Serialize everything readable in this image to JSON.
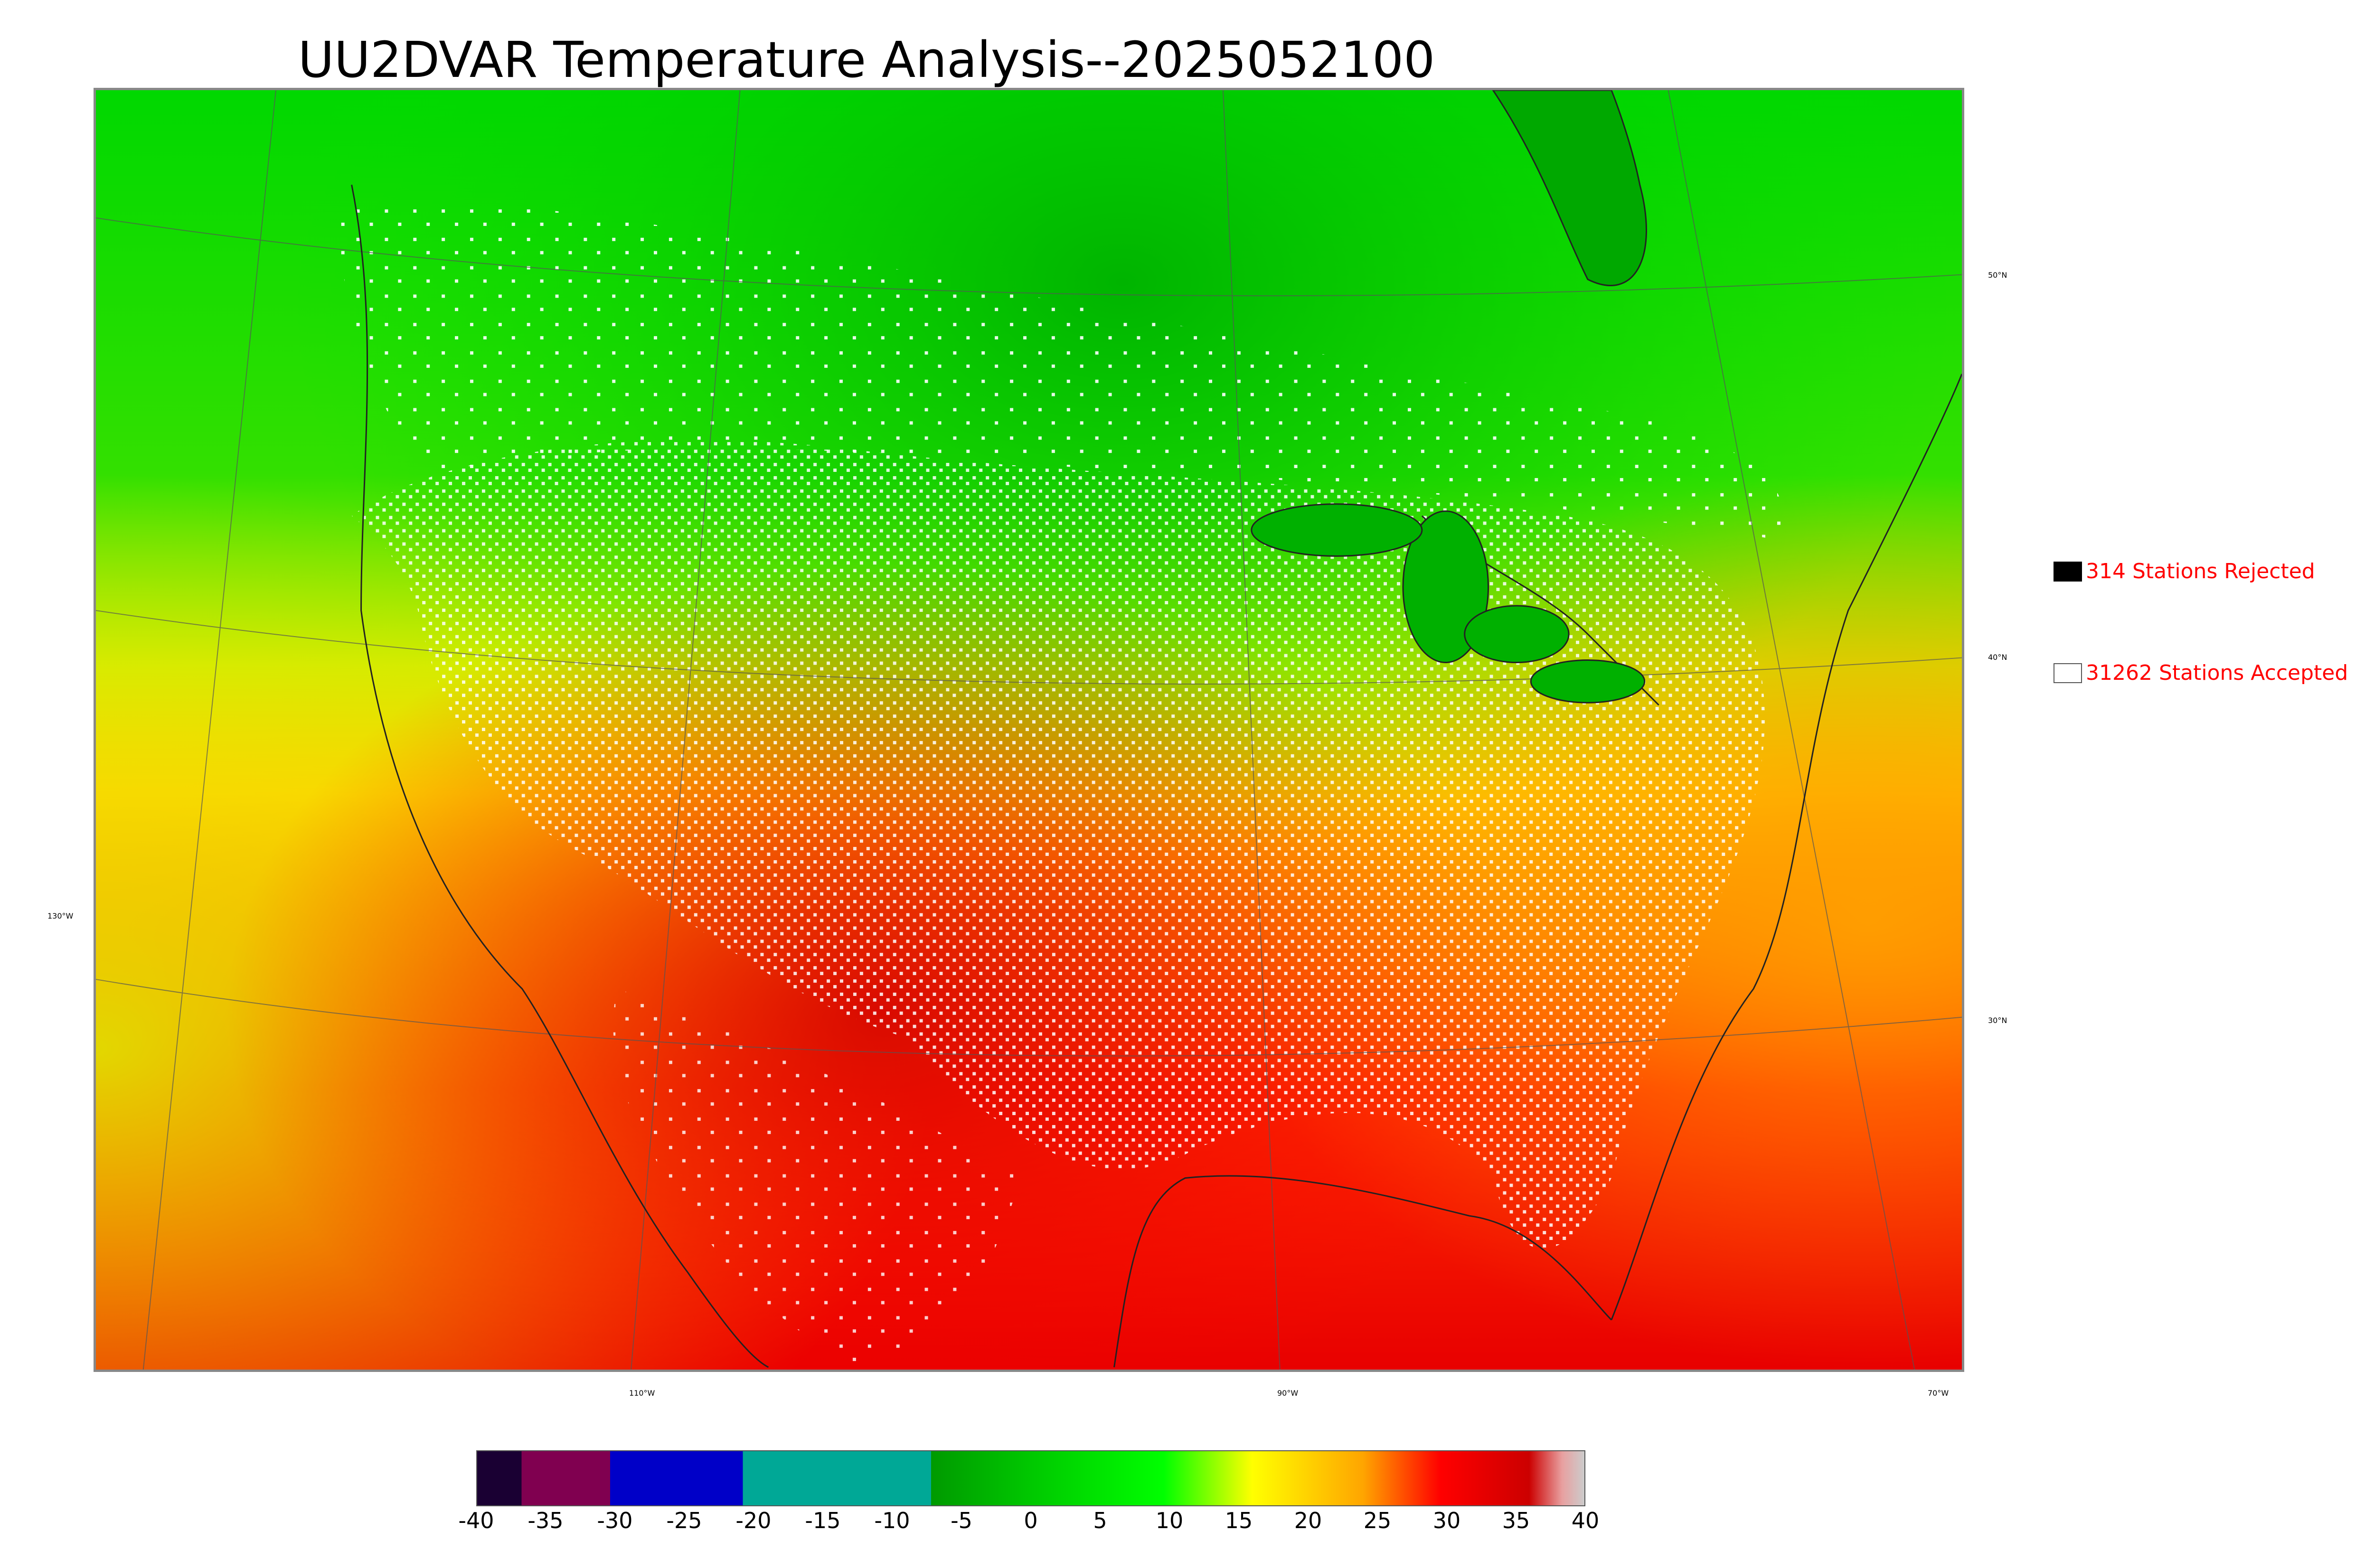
{
  "title": "UU2DVAR Temperature Analysis--2025052100",
  "legend": {
    "rejected": {
      "label": "314 Stations Rejected",
      "color": "#000000"
    },
    "accepted": {
      "label": "31262 Stations Accepted",
      "color": "#ffffff"
    }
  },
  "map": {
    "lat_labels": [
      "50°N",
      "40°N",
      "30°N"
    ],
    "lon_labels": [
      "130°W",
      "110°W",
      "90°W",
      "70°W"
    ]
  },
  "colorbar": {
    "ticks": [
      "-40",
      "-35",
      "-30",
      "-25",
      "-20",
      "-15",
      "-10",
      "-5",
      "0",
      "5",
      "10",
      "15",
      "20",
      "25",
      "30",
      "35",
      "40"
    ],
    "range": [
      -40,
      40
    ],
    "colors": {
      "deep_cold": "#1a0033",
      "maroon": "#800050",
      "blue": "#0000c8",
      "teal": "#00a896",
      "green": "#00c800",
      "bright_green": "#00ff00",
      "yellow": "#ffff00",
      "orange": "#ffa500",
      "red": "#ff0000",
      "dark_red": "#cc0000",
      "pink": "#e8a0a0"
    }
  }
}
